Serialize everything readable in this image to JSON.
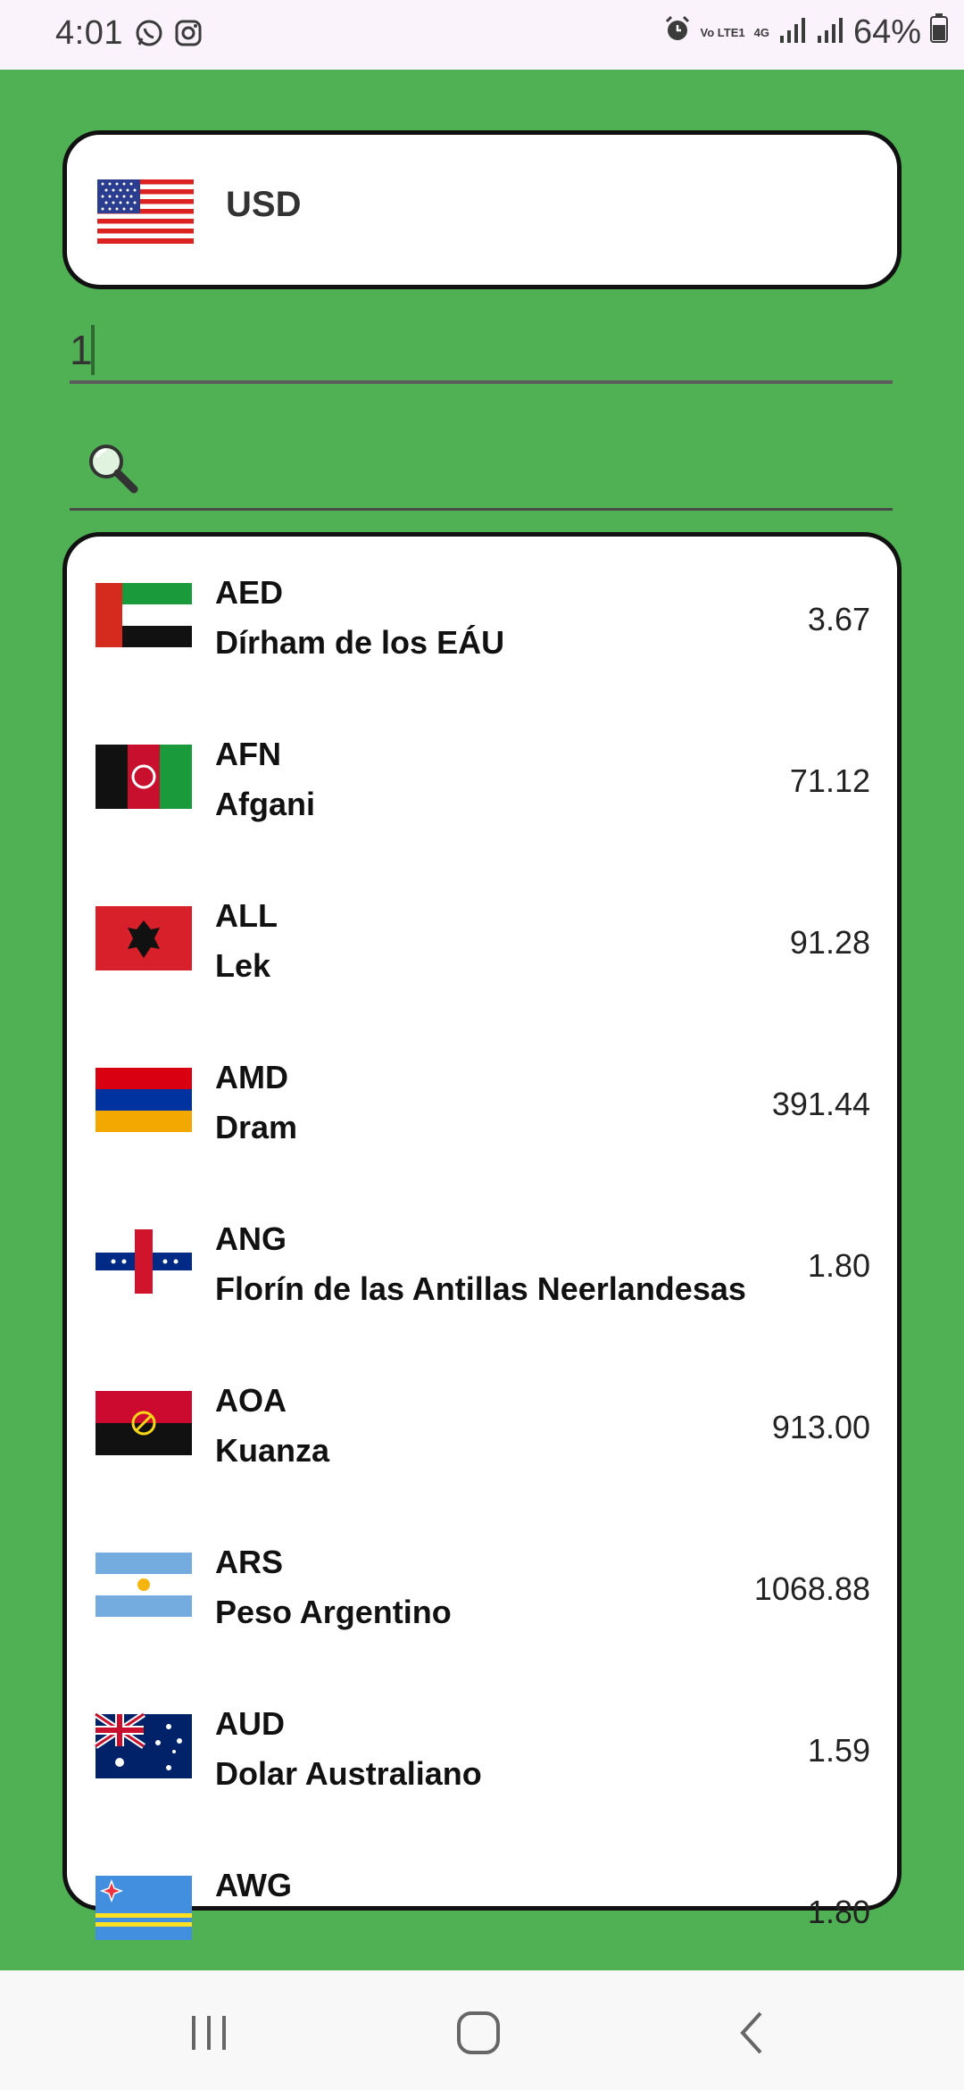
{
  "status_bar": {
    "time": "4:01",
    "battery": "64%",
    "network_volte": "Vo LTE1",
    "network_4g": "4G",
    "icons": [
      "whatsapp-icon",
      "instagram-icon",
      "alarm-icon",
      "volte-icon",
      "4g-icon",
      "signal-icon",
      "signal-icon",
      "battery-icon"
    ]
  },
  "base_currency": {
    "code": "USD",
    "flag": "us-flag-icon"
  },
  "amount": {
    "value": "1"
  },
  "search": {
    "placeholder": "",
    "icon": "search-icon"
  },
  "currencies": [
    {
      "code": "AED",
      "name": "Dírham de los EÁU",
      "value": "3.67",
      "flag": "uae-flag-icon"
    },
    {
      "code": "AFN",
      "name": "Afgani",
      "value": "71.12",
      "flag": "afghanistan-flag-icon"
    },
    {
      "code": "ALL",
      "name": "Lek",
      "value": "91.28",
      "flag": "albania-flag-icon"
    },
    {
      "code": "AMD",
      "name": "Dram",
      "value": "391.44",
      "flag": "armenia-flag-icon"
    },
    {
      "code": "ANG",
      "name": "Florín de las Antillas Neerlandesas",
      "value": "1.80",
      "flag": "netherlands-antilles-flag-icon"
    },
    {
      "code": "AOA",
      "name": "Kuanza",
      "value": "913.00",
      "flag": "angola-flag-icon"
    },
    {
      "code": "ARS",
      "name": "Peso Argentino",
      "value": "1068.88",
      "flag": "argentina-flag-icon"
    },
    {
      "code": "AUD",
      "name": "Dolar Australiano",
      "value": "1.59",
      "flag": "australia-flag-icon"
    },
    {
      "code": "AWG",
      "name": "",
      "value": "1.80",
      "flag": "aruba-flag-icon"
    }
  ],
  "nav": {
    "recents": "recents-icon",
    "home": "home-icon",
    "back": "back-icon"
  },
  "colors": {
    "background": "#4fb153",
    "card": "#ffffff",
    "border": "#111111"
  }
}
